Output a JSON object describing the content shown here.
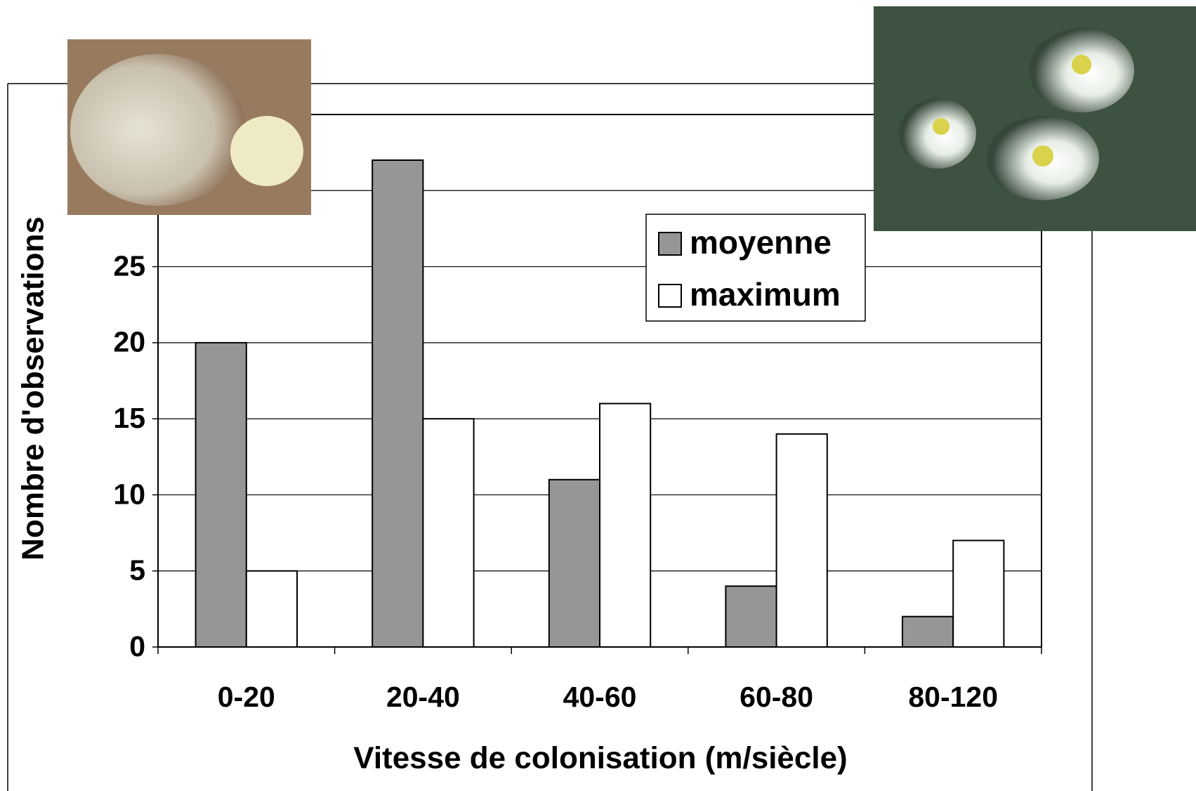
{
  "chart_data": {
    "type": "bar",
    "categories": [
      "0-20",
      "20-40",
      "40-60",
      "60-80",
      "80-120"
    ],
    "series": [
      {
        "name": "moyenne",
        "color": "#969696",
        "values": [
          20,
          32,
          11,
          4,
          2
        ]
      },
      {
        "name": "maximum",
        "color": "#ffffff",
        "values": [
          5,
          15,
          16,
          14,
          7
        ]
      }
    ],
    "x_label": "Vitesse de colonisation (m/siècle)",
    "y_label": "Nombre d'observations",
    "ylim": [
      0,
      35
    ],
    "yticks": [
      0,
      5,
      10,
      15,
      20,
      25,
      30
    ],
    "grid": true,
    "legend": "upper right"
  }
}
